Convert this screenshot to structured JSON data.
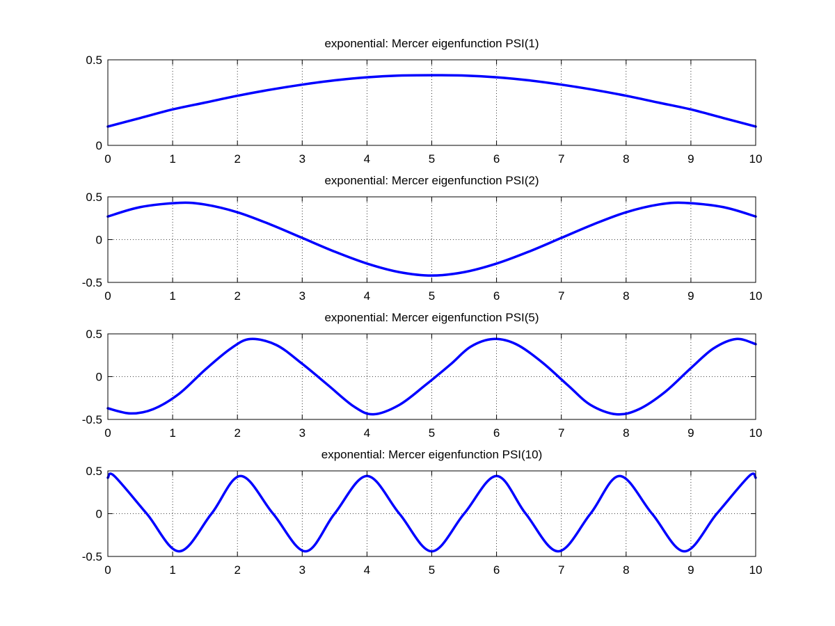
{
  "chart_data": [
    {
      "type": "line",
      "title": "exponential: Mercer eigenfunction PSI(1)",
      "xlim": [
        0,
        10
      ],
      "ylim": [
        0,
        0.5
      ],
      "xticks": [
        0,
        1,
        2,
        3,
        4,
        5,
        6,
        7,
        8,
        9,
        10
      ],
      "xtick_labels": [
        "0",
        "1",
        "2",
        "3",
        "4",
        "5",
        "6",
        "7",
        "8",
        "9",
        "10"
      ],
      "yticks": [
        0,
        0.5
      ],
      "ytick_labels": [
        "0",
        "0.5"
      ],
      "grid": true,
      "series": [
        {
          "color": "#0000ff",
          "x": [
            0,
            0.5,
            1,
            1.5,
            2,
            2.5,
            3,
            3.5,
            4,
            4.5,
            5,
            5.5,
            6,
            6.5,
            7,
            7.5,
            8,
            8.5,
            9,
            9.5,
            10
          ],
          "y": [
            0.11,
            0.16,
            0.21,
            0.25,
            0.29,
            0.325,
            0.355,
            0.38,
            0.398,
            0.408,
            0.41,
            0.408,
            0.398,
            0.38,
            0.355,
            0.325,
            0.29,
            0.25,
            0.21,
            0.16,
            0.11
          ]
        }
      ]
    },
    {
      "type": "line",
      "title": "exponential: Mercer eigenfunction PSI(2)",
      "xlim": [
        0,
        10
      ],
      "ylim": [
        -0.5,
        0.5
      ],
      "xticks": [
        0,
        1,
        2,
        3,
        4,
        5,
        6,
        7,
        8,
        9,
        10
      ],
      "xtick_labels": [
        "0",
        "1",
        "2",
        "3",
        "4",
        "5",
        "6",
        "7",
        "8",
        "9",
        "10"
      ],
      "yticks": [
        -0.5,
        0,
        0.5
      ],
      "ytick_labels": [
        "-0.5",
        "0",
        "0.5"
      ],
      "grid": true,
      "series": [
        {
          "color": "#0000ff",
          "x": [
            0,
            0.5,
            1.1,
            1.5,
            2,
            2.5,
            3,
            3.5,
            4,
            4.5,
            5,
            5.5,
            6,
            6.5,
            7,
            7.5,
            8,
            8.5,
            8.9,
            9.5,
            10
          ],
          "y": [
            0.27,
            0.38,
            0.43,
            0.41,
            0.32,
            0.18,
            0.02,
            -0.14,
            -0.28,
            -0.38,
            -0.42,
            -0.38,
            -0.28,
            -0.14,
            0.02,
            0.18,
            0.32,
            0.41,
            0.43,
            0.38,
            0.27
          ]
        }
      ]
    },
    {
      "type": "line",
      "title": "exponential: Mercer eigenfunction PSI(5)",
      "xlim": [
        0,
        10
      ],
      "ylim": [
        -0.5,
        0.5
      ],
      "xticks": [
        0,
        1,
        2,
        3,
        4,
        5,
        6,
        7,
        8,
        9,
        10
      ],
      "xtick_labels": [
        "0",
        "1",
        "2",
        "3",
        "4",
        "5",
        "6",
        "7",
        "8",
        "9",
        "10"
      ],
      "yticks": [
        -0.5,
        0,
        0.5
      ],
      "ytick_labels": [
        "-0.5",
        "0",
        "0.5"
      ],
      "grid": true,
      "series": [
        {
          "color": "#0000ff",
          "x": [
            0,
            0.35,
            0.7,
            1.1,
            1.5,
            1.9,
            2.2,
            2.6,
            3.0,
            3.4,
            3.8,
            4.1,
            4.5,
            4.9,
            5.3,
            5.6,
            5.95,
            6.3,
            6.7,
            7.1,
            7.45,
            7.85,
            8.2,
            8.6,
            9.0,
            9.35,
            9.7,
            10
          ],
          "y": [
            -0.37,
            -0.43,
            -0.38,
            -0.2,
            0.08,
            0.33,
            0.44,
            0.37,
            0.15,
            -0.1,
            -0.35,
            -0.44,
            -0.33,
            -0.1,
            0.15,
            0.35,
            0.44,
            0.38,
            0.17,
            -0.1,
            -0.33,
            -0.44,
            -0.38,
            -0.18,
            0.1,
            0.33,
            0.44,
            0.38
          ]
        }
      ]
    },
    {
      "type": "line",
      "title": "exponential: Mercer eigenfunction PSI(10)",
      "xlim": [
        0,
        10
      ],
      "ylim": [
        -0.5,
        0.5
      ],
      "xticks": [
        0,
        1,
        2,
        3,
        4,
        5,
        6,
        7,
        8,
        9,
        10
      ],
      "xtick_labels": [
        "0",
        "1",
        "2",
        "3",
        "4",
        "5",
        "6",
        "7",
        "8",
        "9",
        "10"
      ],
      "yticks": [
        -0.5,
        0,
        0.5
      ],
      "ytick_labels": [
        "-0.5",
        "0",
        "0.5"
      ],
      "grid": true,
      "series": [
        {
          "color": "#0000ff",
          "x": [
            0,
            0.1,
            0.6,
            1.1,
            1.6,
            2.05,
            2.55,
            3.05,
            3.5,
            4.0,
            4.5,
            5.0,
            5.5,
            6.0,
            6.45,
            6.95,
            7.45,
            7.9,
            8.4,
            8.9,
            9.4,
            9.9,
            10
          ],
          "y": [
            0.42,
            0.44,
            0.0,
            -0.44,
            0.0,
            0.44,
            0.0,
            -0.44,
            0.0,
            0.44,
            0.0,
            -0.44,
            0.0,
            0.44,
            0.0,
            -0.44,
            0.0,
            0.44,
            0.0,
            -0.44,
            0.0,
            0.44,
            0.42
          ]
        }
      ]
    }
  ]
}
